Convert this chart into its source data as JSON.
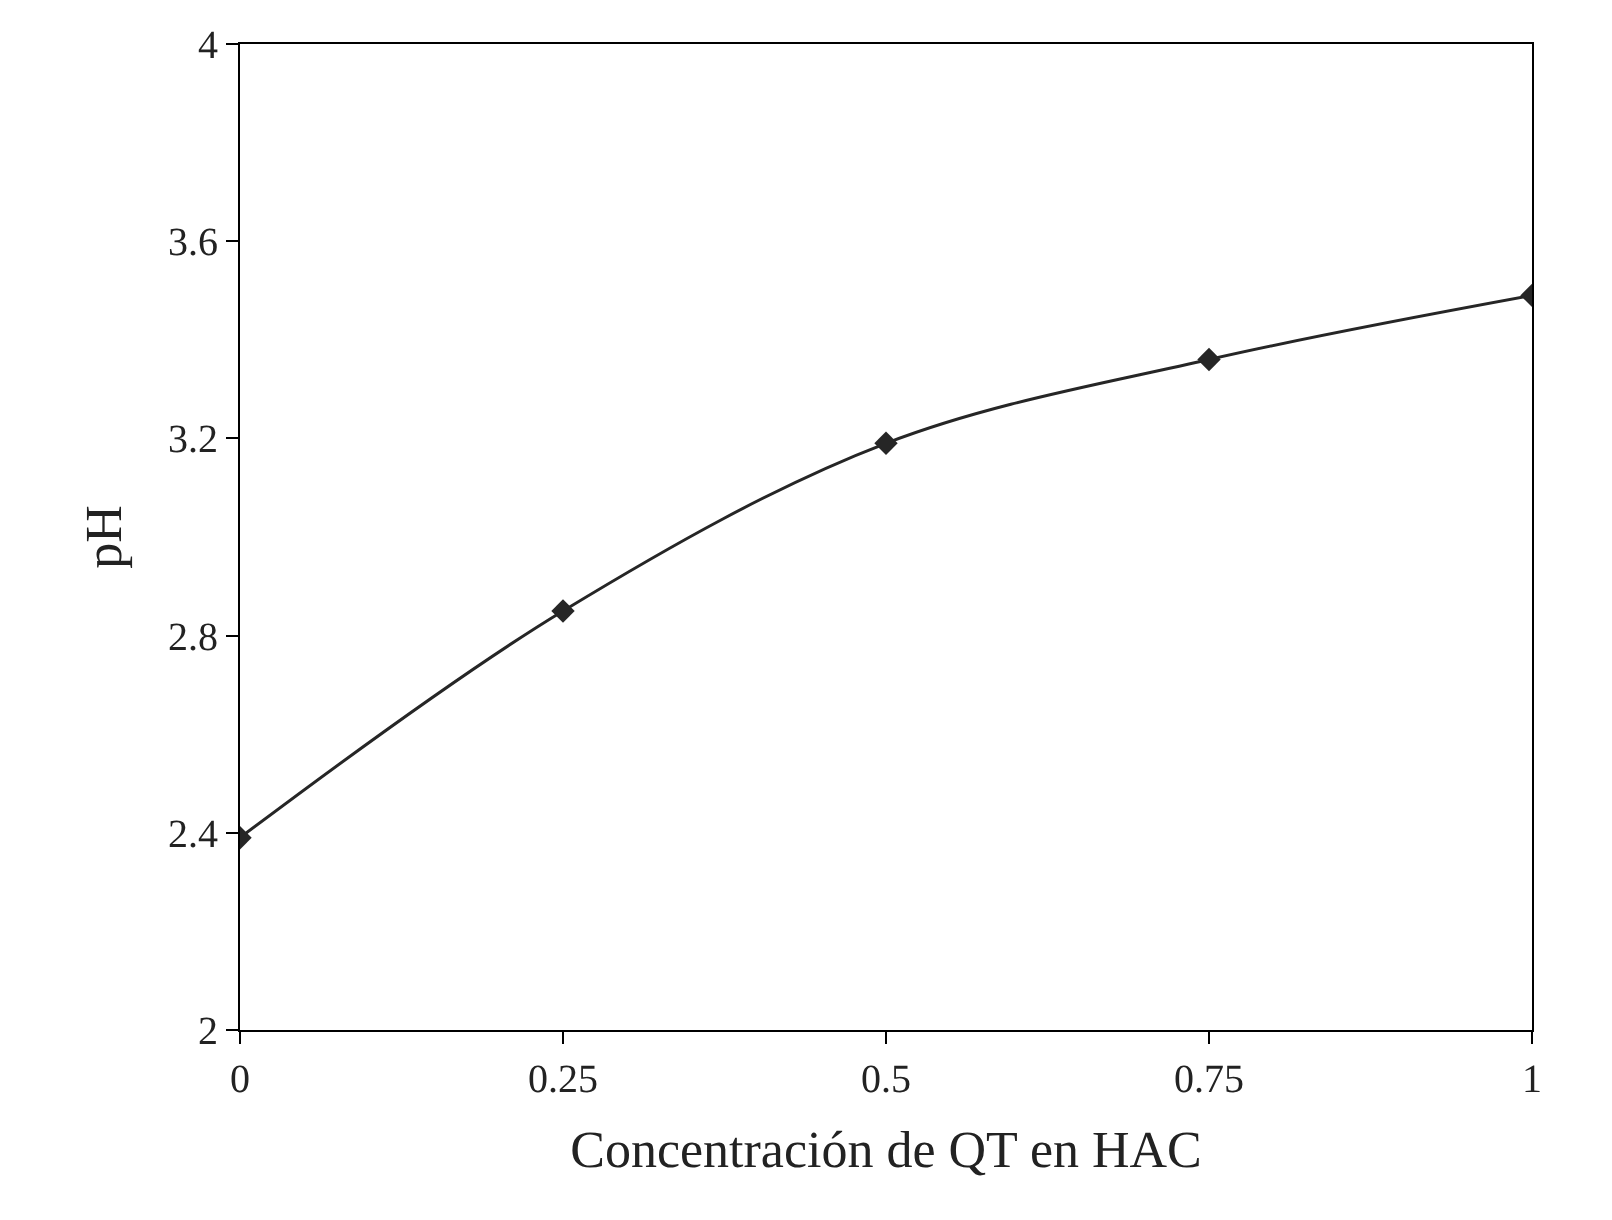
{
  "chart_data": {
    "type": "line",
    "xlabel": "Concentración de QT en HAC",
    "ylabel": "pH",
    "x": [
      0,
      0.25,
      0.5,
      0.75,
      1
    ],
    "series": [
      {
        "color": "#262626",
        "values": [
          2.39,
          2.85,
          3.19,
          3.36,
          3.49
        ]
      }
    ],
    "xlim": [
      0,
      1
    ],
    "xticks": [
      0,
      0.25,
      0.5,
      0.75,
      1
    ],
    "ylim": [
      2,
      4
    ],
    "yticks": [
      2,
      2.4,
      2.8,
      3.2,
      3.6,
      4
    ],
    "marker": "diamond",
    "line_style": "solid"
  }
}
